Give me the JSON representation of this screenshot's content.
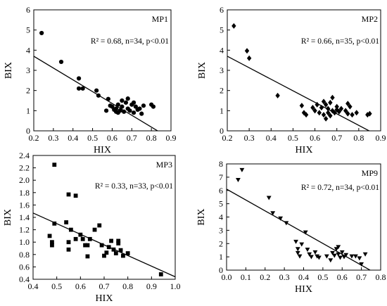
{
  "chart_data": [
    {
      "type": "scatter",
      "panel_label": "MP1",
      "stats_text": "R² = 0.68, n=34, p<0.01",
      "xlabel": "HIX",
      "ylabel": "BIX",
      "xlim": [
        0.2,
        0.9
      ],
      "ylim": [
        0,
        6
      ],
      "xticks": [
        "0.2",
        "0.3",
        "0.4",
        "0.5",
        "0.6",
        "0.7",
        "0.8",
        "0.9"
      ],
      "yticks": [
        "0",
        "1",
        "2",
        "3",
        "4",
        "5",
        "6"
      ],
      "marker": "circle",
      "fit_line": [
        [
          0.2,
          3.7
        ],
        [
          0.9,
          -0.4
        ]
      ],
      "points": [
        [
          0.24,
          4.85
        ],
        [
          0.34,
          3.42
        ],
        [
          0.43,
          2.6
        ],
        [
          0.43,
          2.1
        ],
        [
          0.45,
          2.1
        ],
        [
          0.52,
          2.0
        ],
        [
          0.53,
          1.75
        ],
        [
          0.57,
          1.0
        ],
        [
          0.58,
          1.58
        ],
        [
          0.59,
          1.25
        ],
        [
          0.6,
          1.2
        ],
        [
          0.61,
          1.05
        ],
        [
          0.62,
          0.95
        ],
        [
          0.62,
          1.1
        ],
        [
          0.63,
          0.9
        ],
        [
          0.63,
          1.3
        ],
        [
          0.64,
          1.0
        ],
        [
          0.65,
          1.5
        ],
        [
          0.65,
          1.2
        ],
        [
          0.66,
          0.95
        ],
        [
          0.67,
          1.4
        ],
        [
          0.68,
          1.1
        ],
        [
          0.68,
          1.6
        ],
        [
          0.69,
          1.0
        ],
        [
          0.7,
          1.3
        ],
        [
          0.71,
          1.4
        ],
        [
          0.71,
          0.9
        ],
        [
          0.72,
          1.2
        ],
        [
          0.73,
          1.05
        ],
        [
          0.74,
          1.1
        ],
        [
          0.75,
          0.85
        ],
        [
          0.76,
          1.25
        ],
        [
          0.8,
          1.3
        ],
        [
          0.81,
          1.2
        ]
      ]
    },
    {
      "type": "scatter",
      "panel_label": "MP2",
      "stats_text": "R² = 0.66, n=35, p<0.01",
      "xlabel": "HIX",
      "ylabel": "BIX",
      "xlim": [
        0.2,
        0.9
      ],
      "ylim": [
        0,
        6
      ],
      "xticks": [
        "0.2",
        "0.3",
        "0.4",
        "0.5",
        "0.6",
        "0.7",
        "0.8",
        "0.9"
      ],
      "yticks": [
        "0",
        "1",
        "2",
        "3",
        "4",
        "5",
        "6"
      ],
      "marker": "diamond",
      "fit_line": [
        [
          0.2,
          3.7
        ],
        [
          0.9,
          -0.3
        ]
      ],
      "points": [
        [
          0.23,
          5.2
        ],
        [
          0.29,
          3.97
        ],
        [
          0.3,
          3.6
        ],
        [
          0.43,
          1.75
        ],
        [
          0.54,
          1.25
        ],
        [
          0.55,
          0.9
        ],
        [
          0.56,
          0.8
        ],
        [
          0.59,
          1.15
        ],
        [
          0.6,
          1.0
        ],
        [
          0.61,
          1.3
        ],
        [
          0.62,
          0.9
        ],
        [
          0.63,
          1.15
        ],
        [
          0.64,
          0.8
        ],
        [
          0.64,
          1.45
        ],
        [
          0.65,
          0.6
        ],
        [
          0.65,
          1.3
        ],
        [
          0.66,
          0.9
        ],
        [
          0.66,
          1.1
        ],
        [
          0.67,
          0.75
        ],
        [
          0.67,
          1.4
        ],
        [
          0.68,
          1.0
        ],
        [
          0.68,
          1.65
        ],
        [
          0.69,
          0.9
        ],
        [
          0.7,
          1.2
        ],
        [
          0.7,
          1.05
        ],
        [
          0.71,
          0.95
        ],
        [
          0.72,
          1.1
        ],
        [
          0.74,
          1.0
        ],
        [
          0.75,
          1.35
        ],
        [
          0.75,
          0.85
        ],
        [
          0.76,
          1.2
        ],
        [
          0.77,
          0.8
        ],
        [
          0.79,
          0.9
        ],
        [
          0.84,
          0.8
        ],
        [
          0.85,
          0.85
        ]
      ]
    },
    {
      "type": "scatter",
      "panel_label": "MP3",
      "stats_text": "R² = 0.33, n=33, p<0.01",
      "xlabel": "HIX",
      "ylabel": "BIX",
      "xlim": [
        0.4,
        1.0
      ],
      "ylim": [
        0.4,
        2.4
      ],
      "xticks": [
        "0.4",
        "0.5",
        "0.6",
        "0.7",
        "0.8",
        "0.9",
        "1.0"
      ],
      "yticks": [
        "0.4",
        "0.6",
        "0.8",
        "1.0",
        "1.2",
        "1.4",
        "1.6",
        "1.8",
        "2.0",
        "2.2",
        "2.4"
      ],
      "marker": "square",
      "fit_line": [
        [
          0.4,
          1.47
        ],
        [
          1.0,
          0.44
        ]
      ],
      "points": [
        [
          0.47,
          1.1
        ],
        [
          0.48,
          1.0
        ],
        [
          0.48,
          0.95
        ],
        [
          0.49,
          2.25
        ],
        [
          0.49,
          1.3
        ],
        [
          0.54,
          1.32
        ],
        [
          0.55,
          1.77
        ],
        [
          0.55,
          1.0
        ],
        [
          0.55,
          0.88
        ],
        [
          0.56,
          1.2
        ],
        [
          0.58,
          1.75
        ],
        [
          0.58,
          1.05
        ],
        [
          0.6,
          1.12
        ],
        [
          0.61,
          1.05
        ],
        [
          0.62,
          0.95
        ],
        [
          0.63,
          0.95
        ],
        [
          0.63,
          0.77
        ],
        [
          0.64,
          1.05
        ],
        [
          0.66,
          1.2
        ],
        [
          0.68,
          1.27
        ],
        [
          0.69,
          0.95
        ],
        [
          0.7,
          0.78
        ],
        [
          0.71,
          0.83
        ],
        [
          0.72,
          0.92
        ],
        [
          0.73,
          1.02
        ],
        [
          0.74,
          0.88
        ],
        [
          0.75,
          0.82
        ],
        [
          0.76,
          0.98
        ],
        [
          0.76,
          1.02
        ],
        [
          0.77,
          0.87
        ],
        [
          0.78,
          0.78
        ],
        [
          0.8,
          0.82
        ],
        [
          0.94,
          0.48
        ]
      ]
    },
    {
      "type": "scatter",
      "panel_label": "MP9",
      "stats_text": "R² = 0.72, n=34, p<0.01",
      "xlabel": "HIX",
      "ylabel": "BIX",
      "xlim": [
        0.0,
        0.8
      ],
      "ylim": [
        0,
        8
      ],
      "xticks": [
        "0.0",
        "0.1",
        "0.2",
        "0.3",
        "0.4",
        "0.5",
        "0.6",
        "0.7",
        "0.8"
      ],
      "yticks": [
        "0",
        "1",
        "2",
        "3",
        "4",
        "5",
        "6",
        "7",
        "8"
      ],
      "marker": "triangle-down",
      "fit_line": [
        [
          0.0,
          6.1
        ],
        [
          0.8,
          -0.45
        ]
      ],
      "points": [
        [
          0.06,
          6.8
        ],
        [
          0.08,
          7.55
        ],
        [
          0.22,
          5.45
        ],
        [
          0.24,
          4.3
        ],
        [
          0.28,
          3.9
        ],
        [
          0.31,
          3.55
        ],
        [
          0.36,
          2.15
        ],
        [
          0.37,
          1.6
        ],
        [
          0.37,
          1.3
        ],
        [
          0.38,
          1.05
        ],
        [
          0.39,
          1.95
        ],
        [
          0.41,
          2.85
        ],
        [
          0.42,
          1.55
        ],
        [
          0.43,
          1.2
        ],
        [
          0.44,
          1.0
        ],
        [
          0.46,
          1.35
        ],
        [
          0.47,
          1.05
        ],
        [
          0.48,
          0.95
        ],
        [
          0.52,
          1.05
        ],
        [
          0.54,
          0.75
        ],
        [
          0.55,
          1.3
        ],
        [
          0.56,
          1.1
        ],
        [
          0.57,
          1.6
        ],
        [
          0.58,
          1.2
        ],
        [
          0.58,
          1.75
        ],
        [
          0.59,
          0.95
        ],
        [
          0.6,
          1.35
        ],
        [
          0.61,
          1.0
        ],
        [
          0.62,
          1.15
        ],
        [
          0.65,
          1.05
        ],
        [
          0.67,
          1.05
        ],
        [
          0.69,
          0.9
        ],
        [
          0.7,
          0.45
        ],
        [
          0.72,
          1.2
        ]
      ]
    }
  ]
}
